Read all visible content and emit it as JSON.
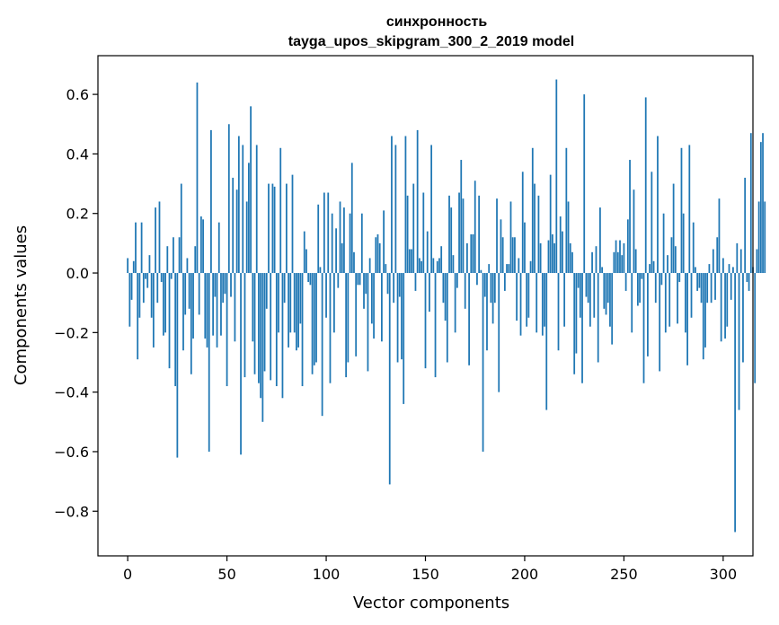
{
  "chart_data": {
    "type": "bar",
    "title_line1": "синхронность",
    "title_line2": "tayga_upos_skipgram_300_2_2019 model",
    "xlabel": "Vector components",
    "ylabel": "Components values",
    "xlim": [
      -15,
      315
    ],
    "ylim": [
      -0.95,
      0.73
    ],
    "xticks": [
      0,
      50,
      100,
      150,
      200,
      250,
      300
    ],
    "yticks": [
      -0.8,
      -0.6,
      -0.4,
      -0.2,
      0.0,
      0.2,
      0.4,
      0.6
    ],
    "ytick_labels": [
      "−0.8",
      "−0.6",
      "−0.4",
      "−0.2",
      "0.0",
      "0.2",
      "0.4",
      "0.6"
    ],
    "bar_color": "#1f77b4",
    "values": [
      0.05,
      -0.18,
      -0.09,
      0.04,
      0.17,
      -0.29,
      -0.15,
      0.17,
      -0.1,
      -0.02,
      -0.05,
      0.06,
      -0.15,
      -0.25,
      0.22,
      -0.1,
      0.24,
      -0.03,
      -0.21,
      -0.2,
      0.09,
      -0.32,
      -0.02,
      0.12,
      -0.38,
      -0.62,
      0.12,
      0.3,
      -0.26,
      -0.14,
      0.05,
      -0.12,
      -0.34,
      -0.22,
      0.09,
      0.64,
      -0.14,
      0.19,
      0.18,
      -0.22,
      -0.25,
      -0.6,
      0.48,
      -0.21,
      -0.08,
      -0.25,
      0.17,
      -0.21,
      -0.1,
      -0.07,
      -0.38,
      0.5,
      -0.08,
      0.32,
      -0.23,
      0.28,
      0.46,
      -0.61,
      0.43,
      -0.35,
      0.24,
      0.37,
      0.56,
      -0.23,
      -0.34,
      0.43,
      -0.37,
      -0.42,
      -0.5,
      -0.33,
      -0.12,
      0.3,
      -0.36,
      0.3,
      0.29,
      -0.38,
      -0.2,
      0.42,
      -0.42,
      -0.1,
      0.3,
      -0.25,
      -0.2,
      0.33,
      -0.2,
      -0.26,
      -0.25,
      -0.17,
      -0.38,
      0.14,
      0.08,
      -0.03,
      -0.04,
      -0.34,
      -0.31,
      -0.3,
      0.23,
      0.02,
      -0.48,
      0.27,
      -0.15,
      0.27,
      -0.37,
      0.2,
      -0.2,
      0.15,
      -0.05,
      0.24,
      0.1,
      0.22,
      -0.35,
      -0.3,
      0.2,
      0.37,
      0.07,
      -0.28,
      -0.04,
      -0.04,
      0.2,
      -0.12,
      -0.07,
      -0.33,
      0.05,
      -0.17,
      -0.22,
      0.12,
      0.13,
      0.1,
      -0.23,
      0.21,
      0.03,
      -0.07,
      -0.71,
      0.46,
      -0.1,
      0.43,
      -0.3,
      -0.08,
      -0.29,
      -0.44,
      0.46,
      0.26,
      0.08,
      0.08,
      0.3,
      -0.06,
      0.48,
      0.05,
      0.04,
      0.27,
      -0.32,
      0.14,
      -0.13,
      0.43,
      0.05,
      -0.35,
      0.04,
      0.05,
      0.09,
      -0.1,
      -0.16,
      -0.3,
      0.26,
      0.22,
      0.06,
      -0.2,
      -0.05,
      0.27,
      0.38,
      0.25,
      -0.12,
      0.1,
      -0.31,
      0.13,
      0.13,
      0.31,
      -0.04,
      0.26,
      0.01,
      -0.6,
      -0.08,
      -0.26,
      0.03,
      -0.1,
      -0.17,
      -0.1,
      0.25,
      -0.4,
      0.18,
      0.12,
      -0.06,
      0.03,
      0.03,
      0.24,
      0.12,
      0.12,
      -0.16,
      0.05,
      -0.21,
      0.34,
      0.17,
      -0.18,
      -0.15,
      0.04,
      0.42,
      0.3,
      -0.2,
      0.26,
      0.1,
      -0.21,
      -0.18,
      -0.46,
      0.11,
      0.33,
      0.13,
      0.1,
      0.65,
      -0.26,
      0.19,
      0.14,
      -0.18,
      0.42,
      0.24,
      0.1,
      0.07,
      -0.34,
      -0.27,
      -0.05,
      -0.15,
      -0.37,
      0.6,
      -0.08,
      -0.1,
      -0.18,
      0.07,
      -0.15,
      0.09,
      -0.3,
      0.22,
      0.02,
      -0.12,
      -0.14,
      -0.1,
      -0.18,
      -0.24,
      0.07,
      0.11,
      0.07,
      0.11,
      0.06,
      0.1,
      -0.06,
      0.18,
      0.38,
      -0.2,
      0.28,
      0.08,
      -0.11,
      -0.1,
      -0.02,
      -0.37,
      0.59,
      -0.28,
      0.03,
      0.34,
      0.04,
      -0.1,
      0.46,
      -0.33,
      -0.04,
      0.2,
      -0.2,
      0.06,
      -0.18,
      0.12,
      0.3,
      0.09,
      -0.17,
      -0.03,
      0.42,
      0.2,
      -0.2,
      -0.31,
      0.43,
      -0.15,
      0.17,
      0.02,
      -0.06,
      -0.05,
      -0.1,
      -0.29,
      -0.25,
      -0.1,
      0.03,
      -0.1,
      0.08,
      -0.09,
      0.12,
      0.25,
      -0.23,
      0.05,
      -0.22,
      -0.18,
      0.03,
      -0.09,
      0.02,
      -0.87,
      0.1,
      -0.46,
      0.08,
      -0.3,
      0.32,
      -0.03,
      -0.06,
      0.47,
      0.02,
      -0.37,
      0.08,
      0.24,
      0.44,
      0.47,
      0.24
    ]
  }
}
